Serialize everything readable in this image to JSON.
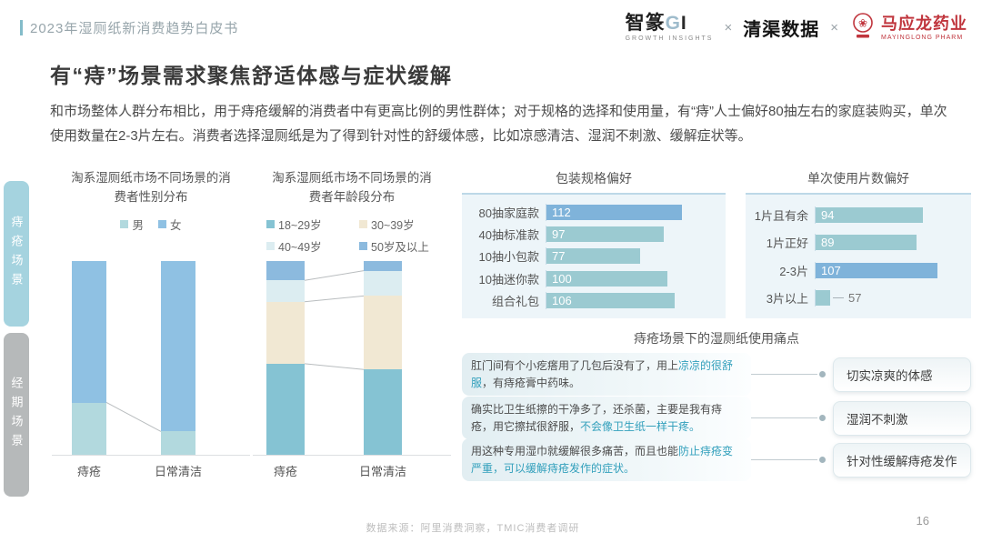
{
  "header": {
    "doc_title": "2023年湿厕纸新消费趋势白皮书",
    "logos": {
      "zz_main": "智篆",
      "zz_g": "G",
      "zz_i": "I",
      "zz_sub": "GROWTH INSIGHTS",
      "x1": "×",
      "qingqu": "清渠数据",
      "x2": "×",
      "myl_name": "马应龙药业",
      "myl_sub": "MAYINGLONG PHARM"
    }
  },
  "title": "有“痔”场景需求聚焦舒适体感与症状缓解",
  "intro": "和市场整体人群分布相比，用于痔疮缓解的消费者中有更高比例的男性群体；对于规格的选择和使用量，有“痔”人士偏好80抽左右的家庭装购买，单次使用数量在2-3片左右。消费者选择湿厕纸是为了得到针对性的舒缓体感，比如凉感清洁、湿润不刺激、缓解症状等。",
  "sidebar": {
    "tabs": [
      {
        "label": "痔疮场景",
        "active": true
      },
      {
        "label": "经期场景",
        "active": false
      }
    ]
  },
  "chart_data": [
    {
      "type": "bar",
      "subtype": "stacked-percent-column",
      "title": "淘系湿厕纸市场不同场景的消费者性别分布",
      "categories": [
        "痔疮",
        "日常清洁"
      ],
      "series": [
        {
          "name": "男",
          "color": "#b2d9de",
          "values": [
            27,
            12
          ]
        },
        {
          "name": "女",
          "color": "#8fc1e3",
          "values": [
            73,
            88
          ]
        }
      ],
      "ylim": [
        0,
        100
      ],
      "legend_position": "top",
      "grid": false
    },
    {
      "type": "bar",
      "subtype": "stacked-percent-column",
      "title": "淘系湿厕纸市场不同场景的消费者年龄段分布",
      "categories": [
        "痔疮",
        "日常清洁"
      ],
      "series": [
        {
          "name": "18~29岁",
          "color": "#85c3d3",
          "values": [
            47,
            44
          ]
        },
        {
          "name": "30~39岁",
          "color": "#f1e8d3",
          "values": [
            32,
            38
          ]
        },
        {
          "name": "40~49岁",
          "color": "#dcedf1",
          "values": [
            11,
            13
          ]
        },
        {
          "name": "50岁及以上",
          "color": "#8cbade",
          "values": [
            10,
            5
          ]
        }
      ],
      "ylim": [
        0,
        100
      ],
      "legend_position": "top",
      "grid": false
    },
    {
      "type": "bar",
      "subtype": "horizontal",
      "title": "包装规格偏好",
      "categories": [
        "80抽家庭款",
        "40抽标准款",
        "10抽小包款",
        "10抽迷你款",
        "组合礼包"
      ],
      "values": [
        112,
        97,
        77,
        100,
        106
      ],
      "bar_color": "#9bcad1",
      "highlight_color": "#7fb3da",
      "highlight_index": 0,
      "xlim": [
        0,
        120
      ],
      "grid": false
    },
    {
      "type": "bar",
      "subtype": "horizontal",
      "title": "单次使用片数偏好",
      "categories": [
        "1片且有余",
        "1片正好",
        "2-3片",
        "3片以上"
      ],
      "values": [
        94,
        89,
        107,
        57
      ],
      "bar_color": "#9bcad1",
      "highlight_color": "#7fb3da",
      "highlight_index": 2,
      "outside_index": 3,
      "xlim": [
        0,
        120
      ],
      "grid": false
    }
  ],
  "pain_points": {
    "title": "痔疮场景下的湿厕纸使用痛点",
    "items": [
      {
        "quote_pre": "肛门间有个小疙瘩用了几包后没有了，用上",
        "quote_hl": "凉凉的很舒服",
        "quote_post": "，有痔疮膏中药味。",
        "tag": "切实凉爽的体感"
      },
      {
        "quote_pre": "确实比卫生纸擦的干净多了，还杀菌，主要是我有痔疮，用它擦拭很舒服，",
        "quote_hl": "不会像卫生纸一样干疼。",
        "quote_post": "",
        "tag": "湿润不刺激"
      },
      {
        "quote_pre": "用这种专用湿巾就缓解很多痛苦，而且也能",
        "quote_hl": "防止痔疮变严重，可以缓解痔疮发作的症状。",
        "quote_post": "",
        "tag": "针对性缓解痔疮发作"
      }
    ]
  },
  "footer": {
    "source": "数据来源：阿里消费洞察，TMIC消费者调研",
    "page_number": "16"
  }
}
